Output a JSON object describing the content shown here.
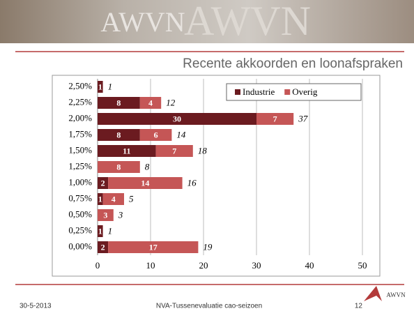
{
  "banner": {
    "text": "AWVN"
  },
  "chart_data": {
    "type": "stacked_barh",
    "title": "Recente akkoorden en loonafspraken",
    "categories": [
      "2,50%",
      "2,25%",
      "2,00%",
      "1,75%",
      "1,50%",
      "1,25%",
      "1,00%",
      "0,75%",
      "0,50%",
      "0,25%",
      "0,00%"
    ],
    "series": [
      {
        "name": "Industrie",
        "color": "#6b1b20",
        "values": [
          1,
          8,
          30,
          8,
          11,
          null,
          2,
          1,
          null,
          1,
          2
        ]
      },
      {
        "name": "Overig",
        "color": "#c55656",
        "values": [
          null,
          4,
          7,
          6,
          7,
          8,
          14,
          4,
          3,
          null,
          17
        ]
      }
    ],
    "totals": [
      1,
      12,
      37,
      14,
      18,
      8,
      16,
      5,
      3,
      1,
      19
    ],
    "xlim": [
      0,
      50
    ],
    "xticks": [
      0,
      10,
      20,
      30,
      40,
      50
    ],
    "grid": true,
    "legend": "top-right"
  },
  "footer": {
    "date": "30-5-2013",
    "text": "NVA-Tussenevaluatie cao-seizoen",
    "page": "12",
    "logo": "AWVN"
  }
}
